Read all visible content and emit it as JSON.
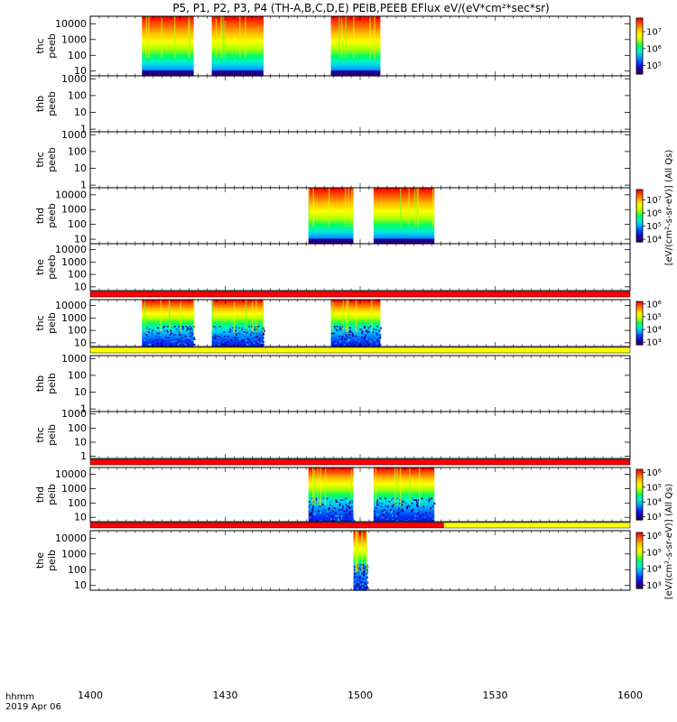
{
  "title": "P5, P1, P2, P3, P4 (TH-A,B,C,D,E) PEIB,PEEB EFlux eV/(eV*cm²*sec*sr)",
  "time_axis": {
    "prefix_label": "hhmm",
    "date_label": "2019 Apr 06",
    "ticks": [
      "1400",
      "1430",
      "1500",
      "1530",
      "1600"
    ],
    "range_minutes": [
      0,
      120
    ]
  },
  "colors": {
    "quality_red": "#ff0000",
    "quality_yellow": "#ffff00",
    "rainbow": [
      "#2a0050",
      "#2000c8",
      "#0040ff",
      "#00a8ff",
      "#00f0d0",
      "#00ff60",
      "#b0ff00",
      "#ffff00",
      "#ffc000",
      "#ff6000",
      "#ff0000"
    ]
  },
  "colorbar_labels": {
    "electron_label": "[eV/(cm²-s-sr-eV)] (All Qs)",
    "ion_label": "[eV/(cm²-s-sr-eV)] (All Qs)"
  },
  "chart_data": [
    {
      "type": "heatmap",
      "probe_label": "thc",
      "species_label": "peeb",
      "yticks": [
        "10",
        "100",
        "1000",
        "10000"
      ],
      "ylim": [
        5,
        30000
      ],
      "log_y": true,
      "segments": [
        [
          11.5,
          23.0
        ],
        [
          27.0,
          38.5
        ],
        [
          53.5,
          64.5
        ]
      ],
      "colorbar_ticks": [
        "10⁵",
        "10⁶",
        "10⁷"
      ],
      "colorbar_range_exp": [
        4.5,
        7.8
      ]
    },
    {
      "type": "heatmap",
      "probe_label": "thb",
      "species_label": "peeb",
      "yticks": [
        "1",
        "10",
        "100",
        "1000"
      ],
      "ylim": [
        0.7,
        1500
      ],
      "log_y": true,
      "segments": [],
      "colorbar_ticks": []
    },
    {
      "type": "heatmap",
      "probe_label": "thc",
      "species_label": "peeb",
      "yticks": [
        "1",
        "10",
        "100",
        "1000"
      ],
      "ylim": [
        0.7,
        1500
      ],
      "log_y": true,
      "segments": [],
      "colorbar_ticks": []
    },
    {
      "type": "heatmap",
      "probe_label": "thd",
      "species_label": "peeb",
      "yticks": [
        "10",
        "100",
        "1000",
        "10000"
      ],
      "ylim": [
        5,
        30000
      ],
      "log_y": true,
      "segments": [
        [
          48.5,
          58.5
        ],
        [
          63.0,
          76.5
        ]
      ],
      "colorbar_ticks": [
        "10⁴",
        "10⁵",
        "10⁶",
        "10⁷"
      ],
      "colorbar_range_exp": [
        3.8,
        7.8
      ]
    },
    {
      "type": "heatmap",
      "probe_label": "the",
      "species_label": "peeb",
      "yticks": [
        "10",
        "100",
        "1000",
        "10000"
      ],
      "ylim": [
        5,
        30000
      ],
      "log_y": true,
      "segments": [],
      "colorbar_ticks": []
    },
    {
      "type": "heatmap",
      "probe_label": "thc",
      "species_label": "peib",
      "yticks": [
        "10",
        "100",
        "1000",
        "10000"
      ],
      "ylim": [
        5,
        30000
      ],
      "log_y": true,
      "segments": [
        [
          11.5,
          23.0
        ],
        [
          27.0,
          38.5
        ],
        [
          53.5,
          64.5
        ]
      ],
      "colorbar_ticks": [
        "10³",
        "10⁴",
        "10⁵",
        "10⁶"
      ],
      "colorbar_range_exp": [
        2.8,
        6.2
      ]
    },
    {
      "type": "heatmap",
      "probe_label": "thb",
      "species_label": "peib",
      "yticks": [
        "1",
        "10",
        "100",
        "1000"
      ],
      "ylim": [
        0.7,
        1500
      ],
      "log_y": true,
      "segments": [],
      "colorbar_ticks": []
    },
    {
      "type": "heatmap",
      "probe_label": "thc",
      "species_label": "peib",
      "yticks": [
        "1",
        "10",
        "100",
        "1000"
      ],
      "ylim": [
        0.7,
        1500
      ],
      "log_y": true,
      "segments": [],
      "colorbar_ticks": []
    },
    {
      "type": "heatmap",
      "probe_label": "thd",
      "species_label": "peib",
      "yticks": [
        "10",
        "100",
        "1000",
        "10000"
      ],
      "ylim": [
        5,
        30000
      ],
      "log_y": true,
      "segments": [
        [
          48.5,
          58.5
        ],
        [
          63.0,
          76.5
        ]
      ],
      "colorbar_ticks": [
        "10³",
        "10⁴",
        "10⁵",
        "10⁶"
      ],
      "colorbar_range_exp": [
        2.8,
        6.2
      ]
    },
    {
      "type": "heatmap",
      "probe_label": "the",
      "species_label": "peib",
      "yticks": [
        "10",
        "100",
        "1000",
        "10000"
      ],
      "ylim": [
        5,
        30000
      ],
      "log_y": true,
      "segments": [
        [
          58.5,
          61.5
        ]
      ],
      "colorbar_ticks": [
        "10³",
        "10⁴",
        "10⁵",
        "10⁶"
      ],
      "colorbar_range_exp": [
        2.8,
        6.2
      ]
    }
  ],
  "quality_bars": [
    {
      "after_panel": 4,
      "pieces": [
        {
          "from": 0,
          "to": 120,
          "color": "red"
        }
      ]
    },
    {
      "after_panel": 5,
      "pieces": [
        {
          "from": 0,
          "to": 120,
          "color": "yellow"
        }
      ]
    },
    {
      "after_panel": 7,
      "pieces": [
        {
          "from": 0,
          "to": 120,
          "color": "red"
        }
      ]
    },
    {
      "after_panel": 8,
      "pieces": [
        {
          "from": 0,
          "to": 78.5,
          "color": "red"
        },
        {
          "from": 78.5,
          "to": 120,
          "color": "yellow"
        }
      ]
    }
  ]
}
